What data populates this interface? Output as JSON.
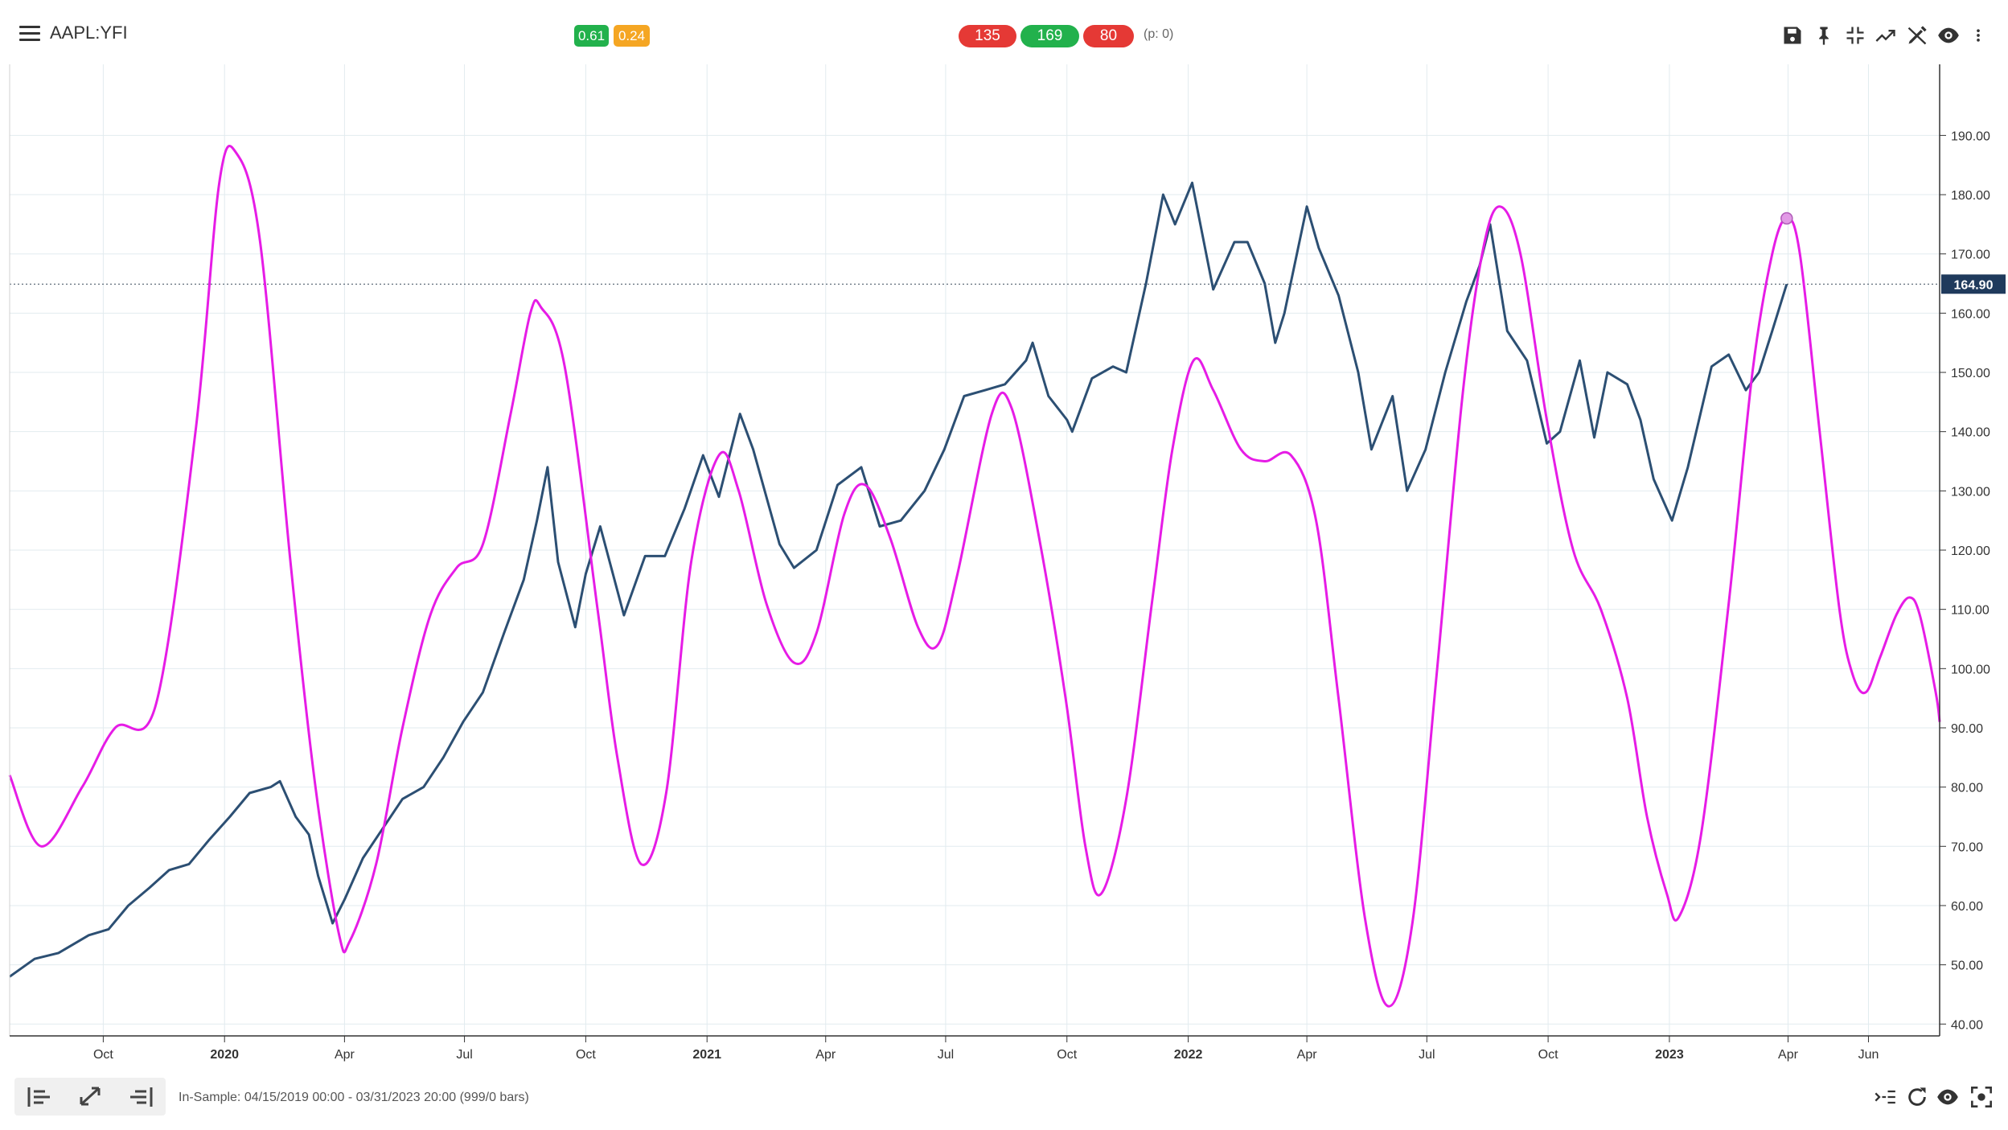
{
  "header": {
    "symbol": "AAPL:YFI",
    "metrics": [
      {
        "label": "0.61",
        "color": "#22b14c"
      },
      {
        "label": "0.24",
        "color": "#f5a623"
      }
    ],
    "counts": [
      {
        "label": "135",
        "color": "#e53935"
      },
      {
        "label": "169",
        "color": "#22b14c"
      },
      {
        "label": "80",
        "color": "#e53935"
      }
    ],
    "p_label": "(p: 0)",
    "tools": [
      "save-icon",
      "pin-icon",
      "collapse-icon",
      "trend-icon",
      "draw-icon",
      "eye-icon",
      "more-icon"
    ]
  },
  "footer": {
    "in_sample": "In-Sample: 04/15/2019 00:00 - 03/31/2023 20:00 (999/0 bars)",
    "nav_buttons": [
      "scroll-start-icon",
      "expand-icon",
      "scroll-end-icon"
    ],
    "right_icons": [
      "indent-icon",
      "refresh-icon",
      "eye-icon",
      "screenshot-icon"
    ]
  },
  "chart_data": {
    "type": "line",
    "price_label": "164.90",
    "ylim": [
      38,
      202
    ],
    "yticks": [
      "40.00",
      "50.00",
      "60.00",
      "70.00",
      "80.00",
      "90.00",
      "100.00",
      "110.00",
      "120.00",
      "130.00",
      "140.00",
      "150.00",
      "160.00",
      "170.00",
      "180.00",
      "190.00"
    ],
    "xlim": [
      "2019-07-22",
      "2023-07-25"
    ],
    "xticks": [
      {
        "date": "2019-10-01",
        "label": "Oct",
        "bold": false
      },
      {
        "date": "2020-01-01",
        "label": "2020",
        "bold": true
      },
      {
        "date": "2020-04-01",
        "label": "Apr",
        "bold": false
      },
      {
        "date": "2020-07-01",
        "label": "Jul",
        "bold": false
      },
      {
        "date": "2020-10-01",
        "label": "Oct",
        "bold": false
      },
      {
        "date": "2021-01-01",
        "label": "2021",
        "bold": true
      },
      {
        "date": "2021-04-01",
        "label": "Apr",
        "bold": false
      },
      {
        "date": "2021-07-01",
        "label": "Jul",
        "bold": false
      },
      {
        "date": "2021-10-01",
        "label": "Oct",
        "bold": false
      },
      {
        "date": "2022-01-01",
        "label": "2022",
        "bold": true
      },
      {
        "date": "2022-04-01",
        "label": "Apr",
        "bold": false
      },
      {
        "date": "2022-07-01",
        "label": "Jul",
        "bold": false
      },
      {
        "date": "2022-10-01",
        "label": "Oct",
        "bold": false
      },
      {
        "date": "2023-01-01",
        "label": "2023",
        "bold": true
      },
      {
        "date": "2023-04-01",
        "label": "Apr",
        "bold": false
      },
      {
        "date": "2023-06-01",
        "label": "Jun",
        "bold": false
      }
    ],
    "series": [
      {
        "color": "#2c4f73",
        "points": [
          [
            "2019-07-22",
            48
          ],
          [
            "2019-08-10",
            51
          ],
          [
            "2019-08-28",
            52
          ],
          [
            "2019-09-20",
            55
          ],
          [
            "2019-10-05",
            56
          ],
          [
            "2019-10-20",
            60
          ],
          [
            "2019-11-05",
            63
          ],
          [
            "2019-11-20",
            66
          ],
          [
            "2019-12-05",
            67
          ],
          [
            "2019-12-20",
            71
          ],
          [
            "2020-01-05",
            75
          ],
          [
            "2020-01-20",
            79
          ],
          [
            "2020-02-05",
            80
          ],
          [
            "2020-02-12",
            81
          ],
          [
            "2020-02-24",
            75
          ],
          [
            "2020-03-05",
            72
          ],
          [
            "2020-03-12",
            65
          ],
          [
            "2020-03-23",
            57
          ],
          [
            "2020-04-01",
            61
          ],
          [
            "2020-04-15",
            68
          ],
          [
            "2020-04-30",
            73
          ],
          [
            "2020-05-15",
            78
          ],
          [
            "2020-05-31",
            80
          ],
          [
            "2020-06-15",
            85
          ],
          [
            "2020-06-30",
            91
          ],
          [
            "2020-07-15",
            96
          ],
          [
            "2020-07-31",
            106
          ],
          [
            "2020-08-15",
            115
          ],
          [
            "2020-08-25",
            125
          ],
          [
            "2020-09-02",
            134
          ],
          [
            "2020-09-10",
            118
          ],
          [
            "2020-09-23",
            107
          ],
          [
            "2020-10-01",
            116
          ],
          [
            "2020-10-12",
            124
          ],
          [
            "2020-10-30",
            109
          ],
          [
            "2020-11-15",
            119
          ],
          [
            "2020-11-30",
            119
          ],
          [
            "2020-12-15",
            127
          ],
          [
            "2020-12-29",
            136
          ],
          [
            "2021-01-10",
            129
          ],
          [
            "2021-01-26",
            143
          ],
          [
            "2021-02-05",
            137
          ],
          [
            "2021-02-25",
            121
          ],
          [
            "2021-03-08",
            117
          ],
          [
            "2021-03-25",
            120
          ],
          [
            "2021-04-10",
            131
          ],
          [
            "2021-04-28",
            134
          ],
          [
            "2021-05-12",
            124
          ],
          [
            "2021-05-28",
            125
          ],
          [
            "2021-06-15",
            130
          ],
          [
            "2021-06-30",
            137
          ],
          [
            "2021-07-15",
            146
          ],
          [
            "2021-07-31",
            147
          ],
          [
            "2021-08-15",
            148
          ],
          [
            "2021-08-31",
            152
          ],
          [
            "2021-09-05",
            155
          ],
          [
            "2021-09-17",
            146
          ],
          [
            "2021-10-01",
            142
          ],
          [
            "2021-10-05",
            140
          ],
          [
            "2021-10-20",
            149
          ],
          [
            "2021-11-05",
            151
          ],
          [
            "2021-11-15",
            150
          ],
          [
            "2021-11-30",
            165
          ],
          [
            "2021-12-13",
            180
          ],
          [
            "2021-12-22",
            175
          ],
          [
            "2022-01-04",
            182
          ],
          [
            "2022-01-20",
            164
          ],
          [
            "2022-02-05",
            172
          ],
          [
            "2022-02-15",
            172
          ],
          [
            "2022-02-28",
            165
          ],
          [
            "2022-03-08",
            155
          ],
          [
            "2022-03-15",
            160
          ],
          [
            "2022-04-01",
            178
          ],
          [
            "2022-04-10",
            171
          ],
          [
            "2022-04-25",
            163
          ],
          [
            "2022-05-10",
            150
          ],
          [
            "2022-05-20",
            137
          ],
          [
            "2022-06-05",
            146
          ],
          [
            "2022-06-16",
            130
          ],
          [
            "2022-06-30",
            137
          ],
          [
            "2022-07-15",
            150
          ],
          [
            "2022-07-31",
            162
          ],
          [
            "2022-08-10",
            168
          ],
          [
            "2022-08-18",
            175
          ],
          [
            "2022-08-31",
            157
          ],
          [
            "2022-09-15",
            152
          ],
          [
            "2022-09-30",
            138
          ],
          [
            "2022-10-10",
            140
          ],
          [
            "2022-10-25",
            152
          ],
          [
            "2022-11-05",
            139
          ],
          [
            "2022-11-15",
            150
          ],
          [
            "2022-11-30",
            148
          ],
          [
            "2022-12-10",
            142
          ],
          [
            "2022-12-20",
            132
          ],
          [
            "2023-01-03",
            125
          ],
          [
            "2023-01-15",
            134
          ],
          [
            "2023-02-02",
            151
          ],
          [
            "2023-02-15",
            153
          ],
          [
            "2023-02-28",
            147
          ],
          [
            "2023-03-10",
            150
          ],
          [
            "2023-03-20",
            157
          ],
          [
            "2023-03-31",
            164.9
          ]
        ]
      },
      {
        "color": "#e61ce6",
        "points": [
          [
            "2019-07-22",
            82
          ],
          [
            "2019-08-15",
            70
          ],
          [
            "2019-09-15",
            80
          ],
          [
            "2019-10-10",
            90
          ],
          [
            "2019-11-10",
            94
          ],
          [
            "2019-12-10",
            140
          ],
          [
            "2019-12-28",
            182
          ],
          [
            "2020-01-10",
            187
          ],
          [
            "2020-01-28",
            172
          ],
          [
            "2020-02-20",
            118
          ],
          [
            "2020-03-10",
            80
          ],
          [
            "2020-03-28",
            55
          ],
          [
            "2020-04-05",
            54
          ],
          [
            "2020-04-25",
            67
          ],
          [
            "2020-05-15",
            90
          ],
          [
            "2020-06-05",
            109
          ],
          [
            "2020-06-25",
            117
          ],
          [
            "2020-07-15",
            121
          ],
          [
            "2020-08-05",
            143
          ],
          [
            "2020-08-20",
            160
          ],
          [
            "2020-08-28",
            161
          ],
          [
            "2020-09-15",
            151
          ],
          [
            "2020-10-10",
            110
          ],
          [
            "2020-10-25",
            85
          ],
          [
            "2020-11-12",
            67
          ],
          [
            "2020-12-01",
            79
          ],
          [
            "2020-12-20",
            118
          ],
          [
            "2021-01-10",
            136
          ],
          [
            "2021-01-25",
            130
          ],
          [
            "2021-02-15",
            111
          ],
          [
            "2021-03-08",
            101
          ],
          [
            "2021-03-25",
            106
          ],
          [
            "2021-04-15",
            126
          ],
          [
            "2021-05-01",
            131
          ],
          [
            "2021-05-20",
            122
          ],
          [
            "2021-06-10",
            107
          ],
          [
            "2021-06-25",
            104
          ],
          [
            "2021-07-10",
            116
          ],
          [
            "2021-08-05",
            143
          ],
          [
            "2021-08-20",
            144
          ],
          [
            "2021-09-10",
            122
          ],
          [
            "2021-09-30",
            95
          ],
          [
            "2021-10-15",
            70
          ],
          [
            "2021-10-27",
            62
          ],
          [
            "2021-11-15",
            78
          ],
          [
            "2021-12-05",
            112
          ],
          [
            "2021-12-20",
            137
          ],
          [
            "2022-01-05",
            152
          ],
          [
            "2022-01-20",
            147
          ],
          [
            "2022-02-10",
            137
          ],
          [
            "2022-02-28",
            135
          ],
          [
            "2022-03-20",
            136
          ],
          [
            "2022-04-08",
            125
          ],
          [
            "2022-04-25",
            95
          ],
          [
            "2022-05-15",
            58
          ],
          [
            "2022-06-02",
            43
          ],
          [
            "2022-06-20",
            57
          ],
          [
            "2022-07-08",
            98
          ],
          [
            "2022-07-28",
            146
          ],
          [
            "2022-08-12",
            170
          ],
          [
            "2022-08-25",
            178
          ],
          [
            "2022-09-10",
            170
          ],
          [
            "2022-09-30",
            142
          ],
          [
            "2022-10-20",
            120
          ],
          [
            "2022-11-10",
            110
          ],
          [
            "2022-11-30",
            95
          ],
          [
            "2022-12-15",
            75
          ],
          [
            "2022-12-30",
            62
          ],
          [
            "2023-01-08",
            58
          ],
          [
            "2023-01-25",
            72
          ],
          [
            "2023-02-15",
            111
          ],
          [
            "2023-03-05",
            150
          ],
          [
            "2023-03-20",
            170
          ],
          [
            "2023-03-31",
            176
          ],
          [
            "2023-04-10",
            170
          ],
          [
            "2023-04-25",
            140
          ],
          [
            "2023-05-10",
            110
          ],
          [
            "2023-05-20",
            99
          ],
          [
            "2023-05-30",
            96
          ],
          [
            "2023-06-10",
            102
          ],
          [
            "2023-06-22",
            109
          ],
          [
            "2023-07-02",
            112
          ],
          [
            "2023-07-10",
            109
          ],
          [
            "2023-07-22",
            96
          ],
          [
            "2023-07-25",
            91
          ]
        ]
      }
    ],
    "marker": {
      "date": "2023-03-31",
      "value": 176
    }
  }
}
